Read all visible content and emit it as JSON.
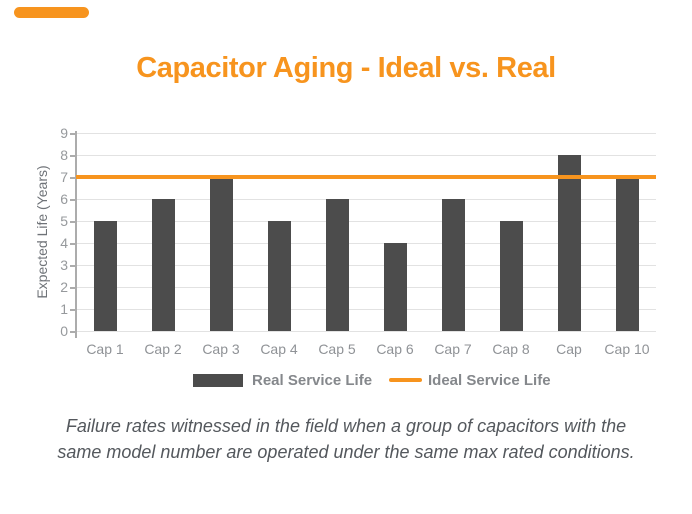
{
  "header": {
    "title": "Capacitor Aging - Ideal vs. Real"
  },
  "colors": {
    "accent_orange": "#F7941E",
    "bar_gray": "#4C4C4C",
    "grid_gray": "#E2E2E2",
    "axis_gray": "#ACACAC",
    "text_gray": "#8F9296",
    "caption_gray": "#54585D"
  },
  "chart_data": {
    "type": "bar",
    "title": "Capacitor Aging - Ideal vs. Real",
    "categories": [
      "Cap 1",
      "Cap 2",
      "Cap 3",
      "Cap 4",
      "Cap 5",
      "Cap 6",
      "Cap 7",
      "Cap 8",
      "Cap",
      "Cap 10"
    ],
    "series": [
      {
        "name": "Real Service Life",
        "type": "bar",
        "color": "#4C4C4C",
        "values": [
          5,
          6,
          7,
          5,
          6,
          4,
          6,
          5,
          8,
          6.9
        ]
      },
      {
        "name": "Ideal Service Life",
        "type": "line",
        "color": "#F7941E",
        "value": 7
      }
    ],
    "xlabel": "",
    "ylabel": "Expected Life (Years)",
    "ylim": [
      0,
      9
    ],
    "yticks": [
      0,
      1,
      2,
      3,
      4,
      5,
      6,
      7,
      8,
      9
    ],
    "grid": true,
    "legend_position": "bottom"
  },
  "legend": {
    "real_label": "Real Service Life",
    "ideal_label": "Ideal Service Life"
  },
  "caption": {
    "line1": "Failure rates witnessed in the field when a group of capacitors with the",
    "line2": "same model number are operated under the same max rated conditions."
  }
}
